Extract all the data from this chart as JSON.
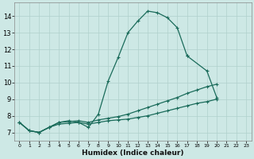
{
  "xlabel": "Humidex (Indice chaleur)",
  "ylabel": "",
  "xlim": [
    -0.5,
    23.5
  ],
  "ylim": [
    6.5,
    14.8
  ],
  "yticks": [
    7,
    8,
    9,
    10,
    11,
    12,
    13,
    14
  ],
  "xticks": [
    0,
    1,
    2,
    3,
    4,
    5,
    6,
    7,
    8,
    9,
    10,
    11,
    12,
    13,
    14,
    15,
    16,
    17,
    18,
    19,
    20,
    21,
    22,
    23
  ],
  "background_color": "#cde8e5",
  "grid_color": "#b0d0cc",
  "line_color": "#1a6b5a",
  "series": [
    [
      7.6,
      7.1,
      7.0,
      7.3,
      7.6,
      7.7,
      7.6,
      7.3,
      8.1,
      10.1,
      11.5,
      13.0,
      13.7,
      14.3,
      14.2,
      13.9,
      13.3,
      11.6,
      null,
      null,
      null,
      null,
      null,
      null
    ],
    [
      null,
      null,
      null,
      null,
      null,
      null,
      null,
      null,
      null,
      null,
      null,
      null,
      null,
      null,
      null,
      null,
      null,
      null,
      null,
      10.7,
      9.1,
      null,
      null,
      null
    ],
    [
      7.6,
      7.1,
      7.0,
      7.3,
      7.5,
      7.55,
      7.6,
      7.5,
      7.6,
      7.7,
      7.75,
      7.8,
      7.9,
      8.0,
      8.15,
      8.3,
      8.45,
      8.6,
      8.75,
      8.85,
      9.0,
      null,
      null,
      null
    ],
    [
      7.6,
      7.1,
      7.0,
      7.3,
      7.6,
      7.65,
      7.7,
      7.6,
      7.75,
      7.85,
      7.95,
      8.1,
      8.3,
      8.5,
      8.7,
      8.9,
      9.1,
      9.35,
      9.55,
      9.75,
      9.9,
      null,
      null,
      null
    ]
  ]
}
